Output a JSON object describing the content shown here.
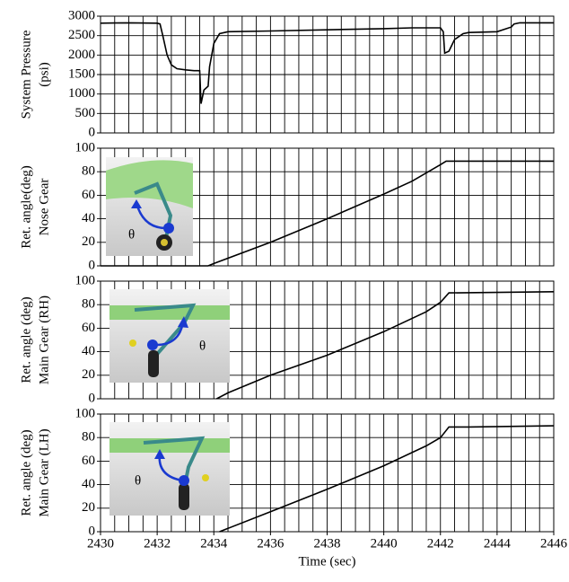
{
  "chart_data": [
    {
      "type": "line",
      "ylabel": [
        "System Pressure",
        "(psi)"
      ],
      "color": "#000000",
      "x": [
        2430,
        2431,
        2432,
        2432.1,
        2432.2,
        2432.35,
        2432.5,
        2432.7,
        2433,
        2433.3,
        2433.5,
        2433.55,
        2433.65,
        2433.8,
        2433.85,
        2434,
        2434.2,
        2434.5,
        2436,
        2438,
        2440,
        2441,
        2442,
        2442.1,
        2442.15,
        2442.3,
        2442.5,
        2442.8,
        2443,
        2444,
        2444.5,
        2444.6,
        2444.8,
        2446
      ],
      "values": [
        2820,
        2830,
        2820,
        2800,
        2500,
        2000,
        1750,
        1650,
        1620,
        1600,
        1600,
        750,
        1100,
        1200,
        1700,
        2300,
        2550,
        2600,
        2620,
        2650,
        2680,
        2700,
        2700,
        2600,
        2050,
        2100,
        2400,
        2550,
        2580,
        2600,
        2720,
        2800,
        2830,
        2830
      ],
      "xlim": [
        2430,
        2446
      ],
      "ylim": [
        0,
        3000
      ],
      "yticks": [
        0,
        500,
        1000,
        1500,
        2000,
        2500,
        3000
      ],
      "xgrid": [
        2430,
        2430.5,
        2431,
        2431.5,
        2432,
        2432.5,
        2433,
        2433.5,
        2434,
        2434.5,
        2435,
        2435.5,
        2436,
        2436.5,
        2437,
        2437.5,
        2438,
        2438.5,
        2439,
        2439.5,
        2440,
        2440.5,
        2441,
        2441.5,
        2442,
        2442.5,
        2443,
        2443.5,
        2444,
        2444.5,
        2445,
        2445.5,
        2446
      ]
    },
    {
      "type": "line",
      "ylabel": [
        "Ret. angle(deg)",
        "Nose Gear"
      ],
      "color": "#000000",
      "annotation": "θ",
      "x": [
        2430,
        2433.8,
        2434,
        2436,
        2438,
        2440,
        2441,
        2442,
        2442.2,
        2446
      ],
      "values": [
        0,
        0,
        2,
        20,
        40,
        61,
        72,
        86,
        89,
        89
      ],
      "xlim": [
        2430,
        2446
      ],
      "ylim": [
        0,
        100
      ],
      "yticks": [
        0,
        20,
        40,
        60,
        80,
        100
      ],
      "xgrid": [
        2430,
        2430.5,
        2431,
        2431.5,
        2432,
        2432.5,
        2433,
        2433.5,
        2434,
        2434.5,
        2435,
        2435.5,
        2436,
        2436.5,
        2437,
        2437.5,
        2438,
        2438.5,
        2439,
        2439.5,
        2440,
        2440.5,
        2441,
        2441.5,
        2442,
        2442.5,
        2443,
        2443.5,
        2444,
        2444.5,
        2445,
        2445.5,
        2446
      ]
    },
    {
      "type": "line",
      "ylabel": [
        "Ret. angle (deg)",
        "Main Gear (RH)"
      ],
      "color": "#000000",
      "annotation": "θ",
      "x": [
        2434.1,
        2434.5,
        2436,
        2438,
        2440,
        2441.5,
        2442,
        2442.3,
        2446
      ],
      "values": [
        0,
        5,
        20,
        37,
        57,
        74,
        82,
        90,
        91
      ],
      "xlim": [
        2430,
        2446
      ],
      "ylim": [
        0,
        100
      ],
      "yticks": [
        0,
        20,
        40,
        60,
        80,
        100
      ],
      "xgrid": [
        2430,
        2430.5,
        2431,
        2431.5,
        2432,
        2432.5,
        2433,
        2433.5,
        2434,
        2434.5,
        2435,
        2435.5,
        2436,
        2436.5,
        2437,
        2437.5,
        2438,
        2438.5,
        2439,
        2439.5,
        2440,
        2440.5,
        2441,
        2441.5,
        2442,
        2442.5,
        2443,
        2443.5,
        2444,
        2444.5,
        2445,
        2445.5,
        2446
      ]
    },
    {
      "type": "line",
      "ylabel": [
        "Ret. angle (deg)",
        "Main Gear (LH)"
      ],
      "color": "#000000",
      "annotation": "θ",
      "xlabel": "Time (sec)",
      "x": [
        2434.2,
        2436,
        2438,
        2440,
        2441.5,
        2442,
        2442.3,
        2443,
        2446
      ],
      "values": [
        0,
        17,
        36,
        56,
        73,
        80,
        89,
        89,
        90
      ],
      "xlim": [
        2430,
        2446
      ],
      "ylim": [
        0,
        100
      ],
      "yticks": [
        0,
        20,
        40,
        60,
        80,
        100
      ],
      "xticks": [
        2430,
        2432,
        2434,
        2436,
        2438,
        2440,
        2442,
        2444,
        2446
      ],
      "xgrid": [
        2430,
        2430.5,
        2431,
        2431.5,
        2432,
        2432.5,
        2433,
        2433.5,
        2434,
        2434.5,
        2435,
        2435.5,
        2436,
        2436.5,
        2437,
        2437.5,
        2438,
        2438.5,
        2439,
        2439.5,
        2440,
        2440.5,
        2441,
        2441.5,
        2442,
        2442.5,
        2443,
        2443.5,
        2444,
        2444.5,
        2445,
        2445.5,
        2446
      ]
    }
  ]
}
